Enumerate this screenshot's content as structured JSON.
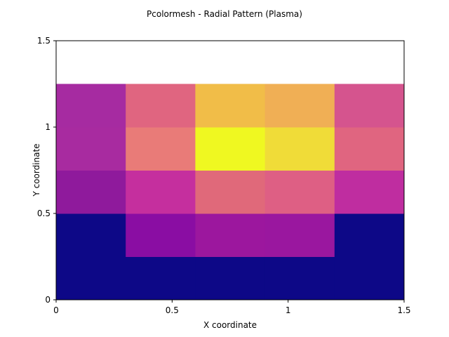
{
  "chart_data": {
    "type": "heatmap",
    "title": "Pcolormesh - Radial Pattern (Plasma)",
    "xlabel": "X coordinate",
    "ylabel": "Y coordinate",
    "xlim": [
      0,
      1.5
    ],
    "ylim": [
      0,
      1.5
    ],
    "x_ticks": [
      0,
      0.5,
      1,
      1.5
    ],
    "y_ticks": [
      0,
      0.5,
      1,
      1.5
    ],
    "x_tick_labels": [
      "0",
      "0.5",
      "1",
      "1.5"
    ],
    "y_tick_labels": [
      "0",
      "0.5",
      "1",
      "1.5"
    ],
    "x_edges": [
      0,
      0.3,
      0.6,
      0.9,
      1.2,
      1.5
    ],
    "y_edges": [
      0,
      0.25,
      0.5,
      0.75,
      1.0,
      1.25
    ],
    "colormap": "plasma",
    "grid": false,
    "colors": [
      [
        "#0d0887",
        "#0d0887",
        "#0d0887",
        "#0d0887",
        "#0d0887"
      ],
      [
        "#0d0887",
        "#8a0da3",
        "#9c179e",
        "#9a179f",
        "#0d0887"
      ],
      [
        "#8f1a9c",
        "#c52f9e",
        "#e0697a",
        "#de5f84",
        "#bf2da0"
      ],
      [
        "#a82ba0",
        "#e97b78",
        "#eff821",
        "#f0dc38",
        "#e06580"
      ],
      [
        "#a62ba1",
        "#e06580",
        "#f1bd48",
        "#f0af55",
        "#d5548e"
      ]
    ]
  }
}
